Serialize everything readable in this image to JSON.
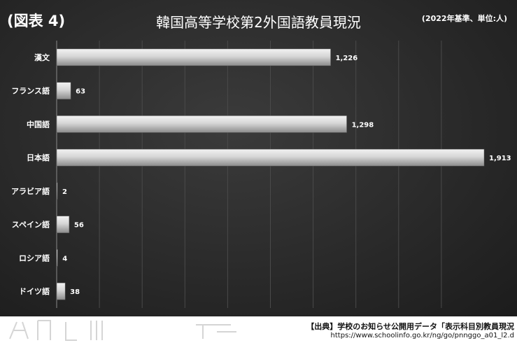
{
  "figure_label": "(図表 4)",
  "unit_note": "(2022年基準、単位:人)",
  "source_line": "【出典】学校のお知らせ公開用データ「表示科目別教員現況",
  "source_url": "https://www.schoolinfo.go.kr/ng/go/pnnggo_a01_l2.d",
  "colors": {
    "background": "#2a2a2a",
    "bar_light": "#f2f2f2",
    "bar_dark": "#8c8c8c",
    "gridline": "#4a4a4a",
    "text": "#ffffff"
  },
  "chart_data": {
    "type": "bar",
    "orientation": "horizontal",
    "title": "韓国高等学校第2外国語教員現況",
    "categories": [
      "漢文",
      "フランス語",
      "中国語",
      "日本語",
      "アラビア語",
      "スペイン語",
      "ロシア語",
      "ドイツ語"
    ],
    "values": [
      1226,
      63,
      1298,
      1913,
      2,
      56,
      4,
      38
    ],
    "value_labels": [
      "1,226",
      "63",
      "1,298",
      "1,913",
      "2",
      "56",
      "4",
      "38"
    ],
    "xlim": [
      0,
      1913
    ],
    "grid": true,
    "legend": "none"
  }
}
